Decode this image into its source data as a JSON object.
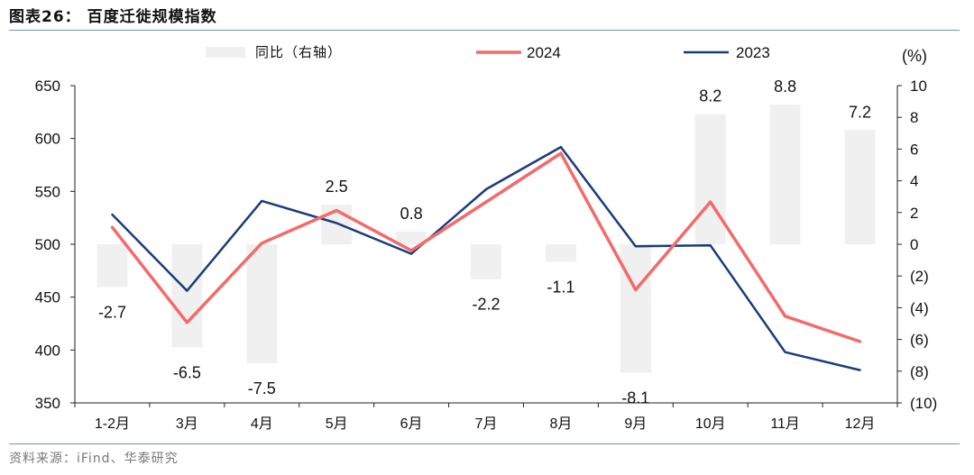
{
  "title": "图表26： 百度迁徙规模指数",
  "source": "资料来源：iFind、华泰研究",
  "chart_data": {
    "type": "line+bar",
    "categories": [
      "1-2月",
      "3月",
      "4月",
      "5月",
      "6月",
      "7月",
      "8月",
      "9月",
      "10月",
      "11月",
      "12月"
    ],
    "series": [
      {
        "name": "2024",
        "type": "line",
        "axis": "left",
        "color": "#f46a6a",
        "values": [
          516,
          426,
          501,
          532,
          494,
          540,
          586,
          457,
          540,
          432,
          408
        ]
      },
      {
        "name": "2023",
        "type": "line",
        "axis": "left",
        "color": "#1a3c7a",
        "values": [
          528,
          456,
          541,
          520,
          491,
          552,
          592,
          498,
          499,
          398,
          381
        ]
      },
      {
        "name": "同比（右轴）",
        "type": "bar",
        "axis": "right",
        "color": "#f0f0f0",
        "values": [
          -2.7,
          -6.5,
          -7.5,
          2.5,
          0.8,
          -2.2,
          -1.1,
          -8.1,
          8.2,
          8.8,
          7.2
        ]
      }
    ],
    "bar_labels": [
      "-2.7",
      "-6.5",
      "-7.5",
      "2.5",
      "0.8",
      "-2.2",
      "-1.1",
      "-8.1",
      "8.2",
      "8.8",
      "7.2"
    ],
    "left_axis": {
      "min": 350,
      "max": 650,
      "ticks": [
        "350",
        "400",
        "450",
        "500",
        "550",
        "600",
        "650"
      ]
    },
    "right_axis": {
      "min": -10,
      "max": 10,
      "unit": "(%)",
      "ticks": [
        "(10)",
        "(8)",
        "(6)",
        "(4)",
        "(2)",
        "0",
        "2",
        "4",
        "6",
        "8",
        "10"
      ]
    },
    "legend": [
      "同比（右轴）",
      "2024",
      "2023"
    ],
    "legend_position": "top"
  }
}
